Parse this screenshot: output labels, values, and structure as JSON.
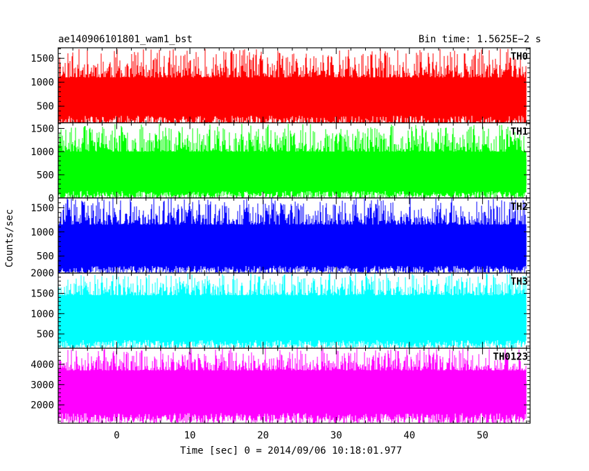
{
  "header": {
    "left_title": "ae140906101801_wam1_bst",
    "right_title": "Bin time: 1.5625E−2 s"
  },
  "chart_data": [
    {
      "type": "line",
      "panel": "TH0",
      "label": "TH0",
      "color": "#ff0000",
      "xlim": [
        -8,
        56.5
      ],
      "ylim": [
        150,
        1720
      ],
      "yticks": [
        500,
        1000,
        1500
      ],
      "baseline": 840,
      "low_envelope": [
        80,
        300
      ],
      "high_envelope": [
        1100,
        1700
      ],
      "seed": 11
    },
    {
      "type": "line",
      "panel": "TH1",
      "label": "TH1",
      "color": "#00ff00",
      "xlim": [
        -8,
        56.5
      ],
      "ylim": [
        0,
        1620
      ],
      "yticks": [
        0,
        500,
        1000,
        1500
      ],
      "baseline": 640,
      "low_envelope": [
        0,
        150
      ],
      "high_envelope": [
        1000,
        1600
      ],
      "seed": 23
    },
    {
      "type": "line",
      "panel": "TH2",
      "label": "TH2",
      "color": "#0000ff",
      "xlim": [
        -8,
        56.5
      ],
      "ylim": [
        150,
        1700
      ],
      "yticks": [
        500,
        1000,
        1500
      ],
      "baseline": 760,
      "low_envelope": [
        150,
        300
      ],
      "high_envelope": [
        1150,
        1700
      ],
      "seed": 37
    },
    {
      "type": "line",
      "panel": "TH3",
      "label": "TH3",
      "color": "#00ffff",
      "xlim": [
        -8,
        56.5
      ],
      "ylim": [
        150,
        2000
      ],
      "yticks": [
        500,
        1000,
        1500,
        2000
      ],
      "baseline": 1000,
      "low_envelope": [
        150,
        350
      ],
      "high_envelope": [
        1450,
        2000
      ],
      "seed": 53
    },
    {
      "type": "line",
      "panel": "TH0123",
      "label": "TH0123",
      "color": "#ff00ff",
      "xlim": [
        -8,
        56.5
      ],
      "ylim": [
        1100,
        4800
      ],
      "yticks": [
        2000,
        3000,
        4000
      ],
      "baseline": 2650,
      "low_envelope": [
        1100,
        1600
      ],
      "high_envelope": [
        3700,
        4800
      ],
      "seed": 71
    }
  ],
  "axes": {
    "xlabel": "Time [sec] 0 = 2014/09/06 10:18:01.977",
    "ylabel": "Counts/sec",
    "xticks": [
      0,
      10,
      20,
      30,
      40,
      50
    ],
    "xtick_labels": [
      "0",
      "10",
      "20",
      "30",
      "40",
      "50"
    ]
  }
}
